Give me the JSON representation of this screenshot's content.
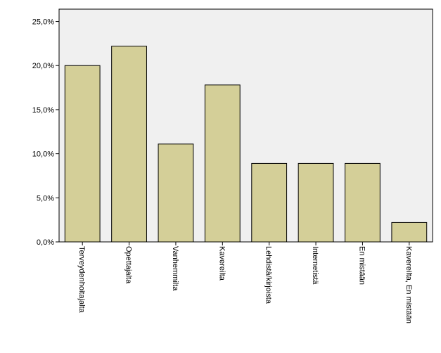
{
  "chart_data": {
    "type": "bar",
    "categories": [
      "Terveydenhoitajalta",
      "Opettajalta",
      "Vanhemmilta",
      "Kavereilta",
      "Lehdistä/kirjoista",
      "Internetistä",
      "En mistään",
      "Kavereilta, En mistään"
    ],
    "values": [
      20.0,
      22.2,
      11.1,
      17.8,
      8.9,
      8.9,
      8.9,
      2.2
    ],
    "ylim": [
      0,
      26.4
    ],
    "yticks": [
      0,
      5,
      10,
      15,
      20,
      25
    ],
    "ytick_labels": [
      "0,0%",
      "5,0%",
      "10,0%",
      "15,0%",
      "20,0%",
      "25,0%"
    ],
    "title": "",
    "xlabel": "",
    "ylabel": "",
    "grid": false,
    "colors": {
      "bar_fill": "#d4cf98",
      "bar_stroke": "#000000",
      "plot_background": "#f0f0f0",
      "axis": "#000000"
    }
  }
}
